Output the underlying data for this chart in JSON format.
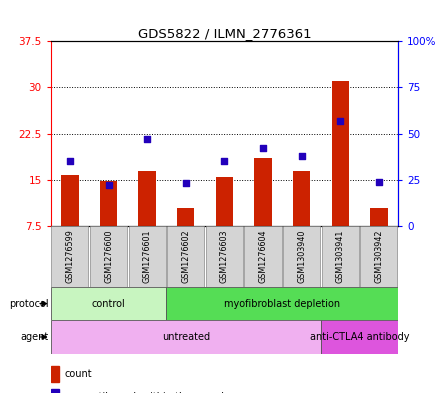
{
  "title": "GDS5822 / ILMN_2776361",
  "samples": [
    "GSM1276599",
    "GSM1276600",
    "GSM1276601",
    "GSM1276602",
    "GSM1276603",
    "GSM1276604",
    "GSM1303940",
    "GSM1303941",
    "GSM1303942"
  ],
  "counts": [
    15.7,
    14.8,
    16.5,
    10.5,
    15.5,
    18.5,
    16.5,
    31.0,
    10.5
  ],
  "percentiles": [
    35,
    22,
    47,
    23,
    35,
    42,
    38,
    57,
    24
  ],
  "y_min": 7.5,
  "y_max": 37.5,
  "y_ticks": [
    7.5,
    15.0,
    22.5,
    30.0,
    37.5
  ],
  "y_tick_labels": [
    "7.5",
    "15",
    "22.5",
    "30",
    "37.5"
  ],
  "y2_ticks": [
    0,
    25,
    50,
    75,
    100
  ],
  "y2_tick_labels": [
    "0",
    "25",
    "50",
    "75",
    "100%"
  ],
  "bar_color": "#cc2200",
  "dot_color": "#2200bb",
  "protocol_groups": [
    {
      "label": "control",
      "start": 0,
      "end": 3,
      "color": "#c8f5c0"
    },
    {
      "label": "myofibroblast depletion",
      "start": 3,
      "end": 9,
      "color": "#55dd55"
    }
  ],
  "agent_groups": [
    {
      "label": "untreated",
      "start": 0,
      "end": 7,
      "color": "#f0b0f0"
    },
    {
      "label": "anti-CTLA4 antibody",
      "start": 7,
      "end": 9,
      "color": "#dd55dd"
    }
  ],
  "legend_count_color": "#cc2200",
  "legend_dot_color": "#2200bb",
  "bg_color": "#ffffff"
}
